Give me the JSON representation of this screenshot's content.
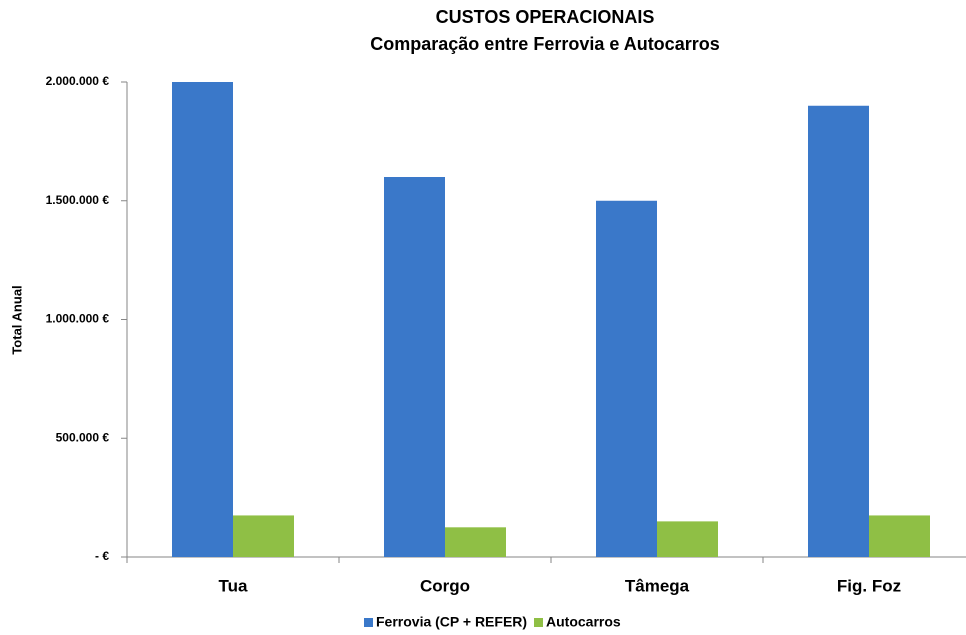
{
  "chart_data": {
    "type": "bar",
    "title": "CUSTOS OPERACIONAIS",
    "subtitle": "Comparação entre Ferrovia e Autocarros",
    "y_label": "Total Anual",
    "categories": [
      "Tua",
      "Corgo",
      "Tâmega",
      "Fig. Foz"
    ],
    "series": [
      {
        "name": "Ferrovia (CP + REFER)",
        "color": "#3a78c9",
        "values": [
          2000000,
          1600000,
          1500000,
          1900000
        ]
      },
      {
        "name": "Autocarros",
        "color": "#8fbf45",
        "values": [
          175000,
          125000,
          150000,
          175000
        ]
      }
    ],
    "ylim": [
      0,
      2000000
    ],
    "yticks": [
      {
        "value": 0,
        "label": "- €"
      },
      {
        "value": 500000,
        "label": "500.000 €"
      },
      {
        "value": 1000000,
        "label": "1.000.000 €"
      },
      {
        "value": 1500000,
        "label": "1.500.000 €"
      },
      {
        "value": 2000000,
        "label": "2.000.000 €"
      }
    ],
    "grid": false,
    "legend": "bottom"
  }
}
